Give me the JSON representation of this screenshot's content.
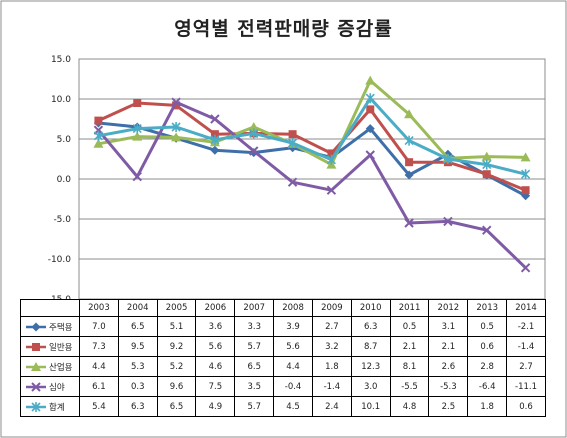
{
  "chart_data": {
    "type": "line",
    "title": "영역별 전력판매량 증감률",
    "x": [
      "2003",
      "2004",
      "2005",
      "2006",
      "2007",
      "2008",
      "2009",
      "2010",
      "2011",
      "2012",
      "2013",
      "2014"
    ],
    "ylim": [
      -15,
      15
    ],
    "yticks": [
      "15.0",
      "10.0",
      "5.0",
      "0.0",
      "-5.0",
      "-10.0",
      "-15.0"
    ],
    "ytick_values": [
      15,
      10,
      5,
      0,
      -5,
      -10,
      -15
    ],
    "grid": true,
    "legend": "data-table",
    "series": [
      {
        "name": "주택용",
        "values": [
          7.0,
          6.5,
          5.1,
          3.6,
          3.3,
          3.9,
          2.7,
          6.3,
          0.5,
          3.1,
          0.5,
          -2.1
        ],
        "labels": [
          "7.0",
          "6.5",
          "5.1",
          "3.6",
          "3.3",
          "3.9",
          "2.7",
          "6.3",
          "0.5",
          "3.1",
          "0.5",
          "-2.1"
        ],
        "color": "#3f6fa8",
        "marker": "diamond"
      },
      {
        "name": "일반용",
        "values": [
          7.3,
          9.5,
          9.2,
          5.6,
          5.7,
          5.6,
          3.2,
          8.7,
          2.1,
          2.1,
          0.6,
          -1.4
        ],
        "labels": [
          "7.3",
          "9.5",
          "9.2",
          "5.6",
          "5.7",
          "5.6",
          "3.2",
          "8.7",
          "2.1",
          "2.1",
          "0.6",
          "-1.4"
        ],
        "color": "#c0504d",
        "marker": "square"
      },
      {
        "name": "산업용",
        "values": [
          4.4,
          5.3,
          5.2,
          4.6,
          6.5,
          4.4,
          1.8,
          12.3,
          8.1,
          2.6,
          2.8,
          2.7
        ],
        "labels": [
          "4.4",
          "5.3",
          "5.2",
          "4.6",
          "6.5",
          "4.4",
          "1.8",
          "12.3",
          "8.1",
          "2.6",
          "2.8",
          "2.7"
        ],
        "color": "#9bbb59",
        "marker": "triangle"
      },
      {
        "name": "심야",
        "values": [
          6.1,
          0.3,
          9.6,
          7.5,
          3.5,
          -0.4,
          -1.4,
          3.0,
          -5.5,
          -5.3,
          -6.4,
          -11.1
        ],
        "labels": [
          "6.1",
          "0.3",
          "9.6",
          "7.5",
          "3.5",
          "-0.4",
          "-1.4",
          "3.0",
          "-5.5",
          "-5.3",
          "-6.4",
          "-11.1"
        ],
        "color": "#7f5ba6",
        "marker": "x"
      },
      {
        "name": "합계",
        "values": [
          5.4,
          6.3,
          6.5,
          4.9,
          5.7,
          4.5,
          2.4,
          10.1,
          4.8,
          2.5,
          1.8,
          0.6
        ],
        "labels": [
          "5.4",
          "6.3",
          "6.5",
          "4.9",
          "5.7",
          "4.5",
          "2.4",
          "10.1",
          "4.8",
          "2.5",
          "1.8",
          "0.6"
        ],
        "color": "#4bacc6",
        "marker": "star"
      }
    ]
  }
}
